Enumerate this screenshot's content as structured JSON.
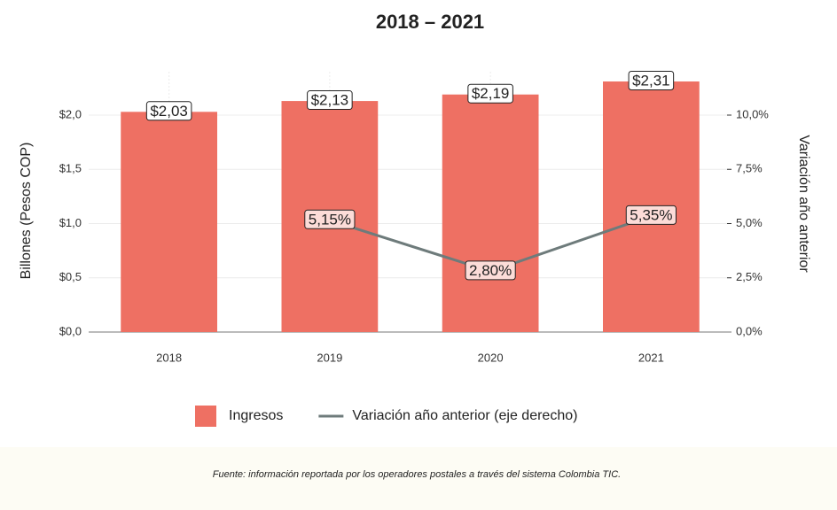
{
  "chart_data": {
    "type": "bar",
    "title": "2018 – 2021",
    "categories": [
      "2018",
      "2019",
      "2020",
      "2021"
    ],
    "series": [
      {
        "name": "Ingresos",
        "type": "bar",
        "color": "#ee7063",
        "values": [
          2.03,
          2.13,
          2.19,
          2.31
        ],
        "value_labels": [
          "$2,03",
          "$2,13",
          "$2,19",
          "$2,31"
        ]
      },
      {
        "name": "Variación año anterior (eje derecho)",
        "type": "line",
        "axis": "y2",
        "color": "#6e7b7b",
        "values": [
          null,
          5.15,
          2.8,
          5.35
        ],
        "value_labels": [
          null,
          "5,15%",
          "2,80%",
          "5,35%"
        ]
      }
    ],
    "ylabel": "Billones (Pesos COP)",
    "y2label": "Variación año anterior",
    "ylim": [
      0,
      2.4
    ],
    "yticks": [
      {
        "value": 0,
        "label": "$0,0"
      },
      {
        "value": 0.5,
        "label": "$0,5"
      },
      {
        "value": 1,
        "label": "$1,0"
      },
      {
        "value": 1.5,
        "label": "$1,5"
      },
      {
        "value": 2,
        "label": "$2,0"
      }
    ],
    "y2lim": [
      0,
      12
    ],
    "y2ticks": [
      {
        "value": 0,
        "label": "0,0%"
      },
      {
        "value": 2.5,
        "label": "2,5%"
      },
      {
        "value": 5,
        "label": "5,0%"
      },
      {
        "value": 7.5,
        "label": "7,5%"
      },
      {
        "value": 10,
        "label": "10,0%"
      }
    ],
    "grid": true,
    "legend": "bottom",
    "source": "Fuente: información reportada por los operadores postales a través del sistema Colombia TIC."
  }
}
